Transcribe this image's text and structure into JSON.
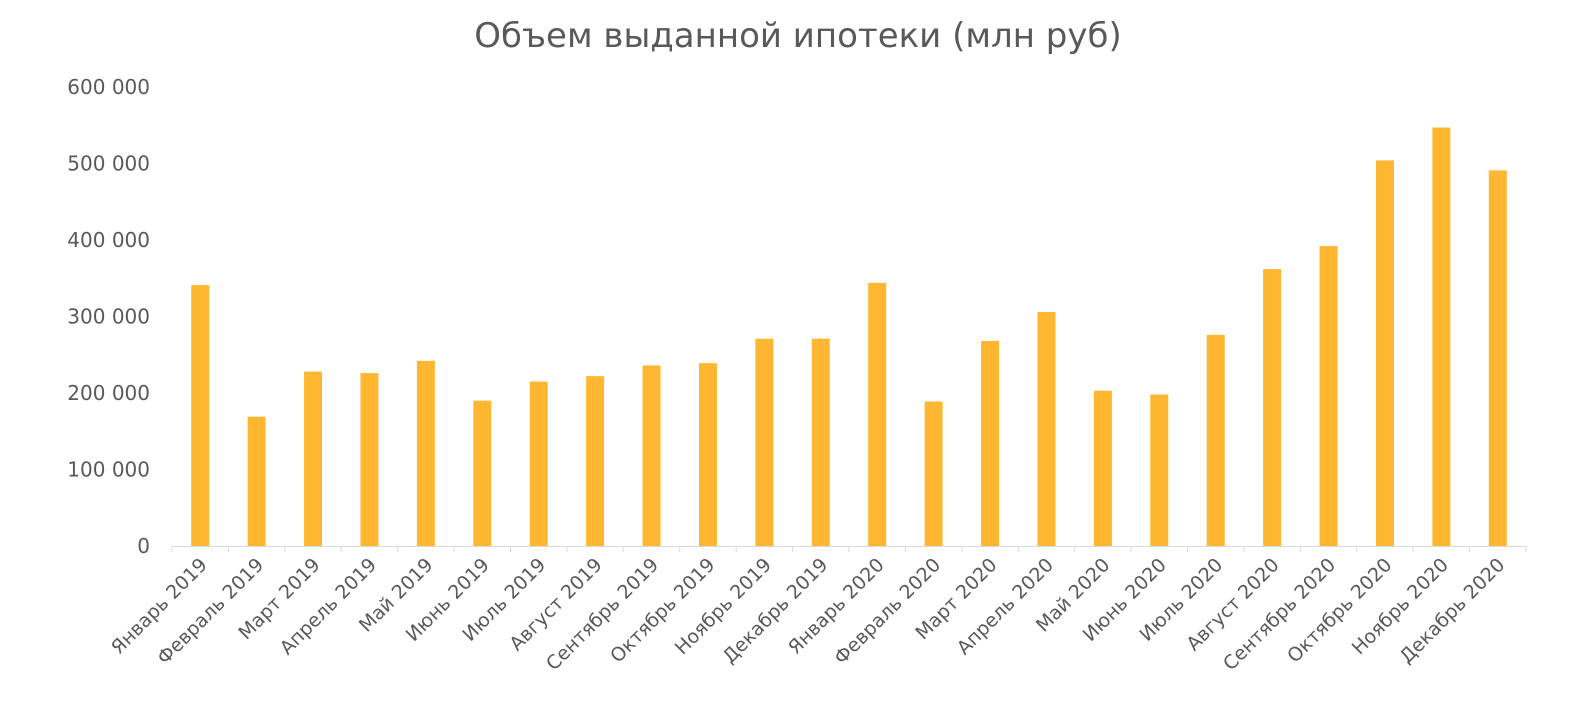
{
  "chart_data": {
    "type": "bar",
    "title": "Объем выданной ипотеки (млн руб)",
    "xlabel": "",
    "ylabel": "",
    "ylim": [
      0,
      600000
    ],
    "y_ticks": [
      0,
      100000,
      200000,
      300000,
      400000,
      500000,
      600000
    ],
    "y_tick_labels": [
      "0",
      "100 000",
      "200 000",
      "300 000",
      "400 000",
      "500 000",
      "600 000"
    ],
    "categories": [
      "Январь 2019",
      "Февраль 2019",
      "Март 2019",
      "Апрель 2019",
      "Май 2019",
      "Июнь 2019",
      "Июль 2019",
      "Август 2019",
      "Сентябрь 2019",
      "Октябрь 2019",
      "Ноябрь 2019",
      "Декабрь 2019",
      "Январь 2020",
      "Февраль 2020",
      "Март 2020",
      "Апрель 2020",
      "Май 2020",
      "Июнь 2020",
      "Июль 2020",
      "Август 2020",
      "Сентябрь 2020",
      "Октябрь 2020",
      "Ноябрь 2020",
      "Декабрь 2020"
    ],
    "values": [
      341000,
      169000,
      228000,
      226000,
      242000,
      190000,
      215000,
      222000,
      236000,
      239000,
      271000,
      271000,
      344000,
      189000,
      268000,
      306000,
      203000,
      198000,
      276000,
      362000,
      392000,
      504000,
      547000,
      491000
    ],
    "bar_color": "#FFB732",
    "grid": false,
    "legend": "none"
  }
}
